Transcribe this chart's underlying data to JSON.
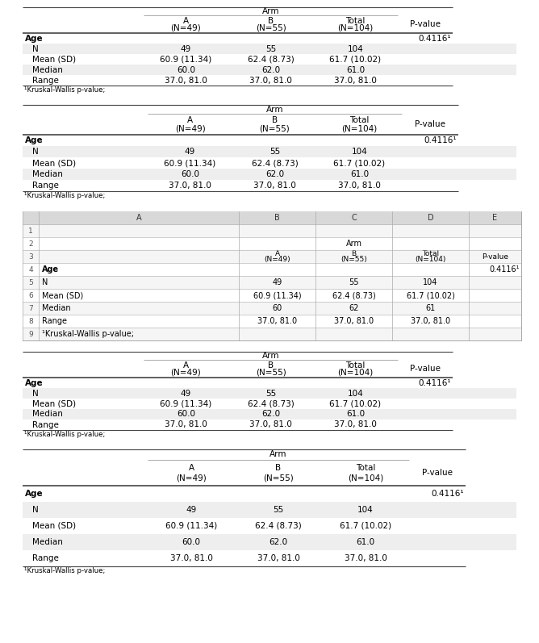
{
  "arm_label": "Arm",
  "col_headers_line1": [
    "A",
    "B",
    "Total",
    "P-value"
  ],
  "col_headers_line2": [
    "(N=49)",
    "(N=55)",
    "(N=104)",
    ""
  ],
  "row_labels": [
    "Age",
    "N",
    "Mean (SD)",
    "Median",
    "Range"
  ],
  "col_A": [
    "",
    "49",
    "60.9 (11.34)",
    "60.0",
    "37.0, 81.0"
  ],
  "col_B": [
    "",
    "55",
    "62.4 (8.73)",
    "62.0",
    "37.0, 81.0"
  ],
  "col_T": [
    "",
    "104",
    "61.7 (10.02)",
    "61.0",
    "37.0, 81.0"
  ],
  "col_P": [
    "0.4116¹",
    "",
    "",
    "",
    ""
  ],
  "col_A_ss": [
    "",
    "49",
    "60.9 (11.34)",
    "60",
    "37.0, 81.0"
  ],
  "col_B_ss": [
    "",
    "55",
    "62.4 (8.73)",
    "62",
    "37.0, 81.0"
  ],
  "col_T_ss": [
    "",
    "104",
    "61.7 (10.02)",
    "61",
    "37.0, 81.0"
  ],
  "footnote": "¹Kruskal-Wallis p-value;",
  "bg_gray": "#eeeeee",
  "line_color": "#444444",
  "text_color": "#000000",
  "ss_col_labels": [
    "",
    "A",
    "B",
    "C",
    "D",
    "E"
  ],
  "ss_row_labels": [
    "1",
    "2",
    "3",
    "4",
    "5",
    "6",
    "7",
    "8",
    "9"
  ],
  "ss_footnote": "¹Kruskal-Wallis p-value;"
}
